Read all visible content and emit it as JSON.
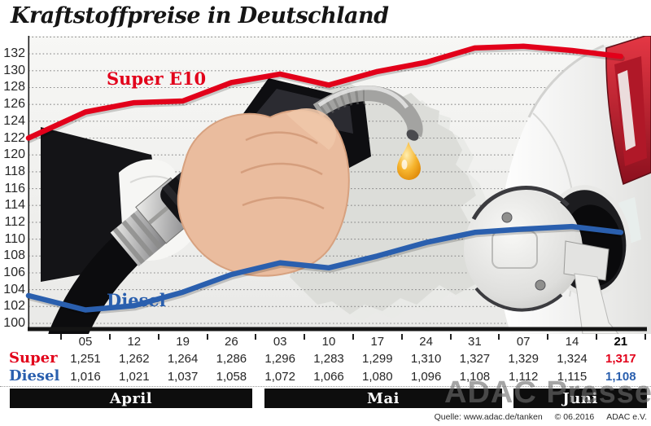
{
  "title": "Kraftstoffpreise in Deutschland",
  "chart_data": {
    "type": "line",
    "title": "Kraftstoffpreise in Deutschland",
    "x_labels": [
      "05",
      "12",
      "19",
      "26",
      "03",
      "10",
      "17",
      "24",
      "31",
      "07",
      "14",
      "21"
    ],
    "month_groups": [
      {
        "label": "April",
        "columns": [
          "05",
          "12",
          "19",
          "26"
        ]
      },
      {
        "label": "Mai",
        "columns": [
          "03",
          "10",
          "17",
          "24",
          "31"
        ]
      },
      {
        "label": "Juni",
        "columns": [
          "07",
          "14",
          "21"
        ]
      }
    ],
    "ylim": [
      99,
      134
    ],
    "yticks": [
      "132",
      "130",
      "128",
      "126",
      "124",
      "122",
      "120",
      "118",
      "116",
      "114",
      "112",
      "110",
      "108",
      "106",
      "104",
      "102",
      "100"
    ],
    "grid": "dotted-horizontal",
    "legend_position": "inline-labels",
    "series": [
      {
        "name": "Super E10",
        "color": "#e2001a",
        "lead_in_cent": 122.0,
        "values_cent": [
          125.1,
          126.2,
          126.4,
          128.6,
          129.6,
          128.3,
          129.9,
          131.0,
          132.7,
          132.9,
          132.4,
          131.7
        ]
      },
      {
        "name": "Diesel",
        "color": "#2a5fae",
        "lead_in_cent": 103.3,
        "values_cent": [
          101.6,
          102.1,
          103.7,
          105.8,
          107.2,
          106.6,
          108.0,
          109.6,
          110.8,
          111.2,
          111.5,
          110.8
        ]
      }
    ]
  },
  "labels": {
    "super_line": "Super E10",
    "diesel_line": "Diesel"
  },
  "table": {
    "dates": [
      "05",
      "12",
      "19",
      "26",
      "03",
      "10",
      "17",
      "24",
      "31",
      "07",
      "14",
      "21"
    ],
    "rows": [
      {
        "label": "Super",
        "color": "#e2001a",
        "values": [
          "1,251",
          "1,262",
          "1,264",
          "1,286",
          "1,296",
          "1,283",
          "1,299",
          "1,310",
          "1,327",
          "1,329",
          "1,324",
          "1,317"
        ]
      },
      {
        "label": "Diesel",
        "color": "#2a5fae",
        "values": [
          "1,016",
          "1,021",
          "1,037",
          "1,058",
          "1,072",
          "1,066",
          "1,080",
          "1,096",
          "1,108",
          "1,112",
          "1,115",
          "1,108"
        ]
      }
    ],
    "last_column_highlighted": true
  },
  "months": [
    "April",
    "Mai",
    "Juni"
  ],
  "watermark": "ADAC Presse",
  "source": {
    "quelle": "Quelle: www.adac.de/tanken",
    "copyright": "© 06.2016",
    "org": "ADAC e.V."
  },
  "colors": {
    "super_red": "#e2001a",
    "diesel_blue": "#2a5fae",
    "month_bar": "#0d0d0d",
    "grid": "#8a8a8a",
    "fuel_drop": "#f0a219"
  }
}
